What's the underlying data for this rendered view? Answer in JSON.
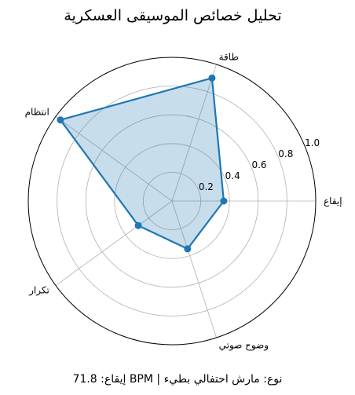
{
  "chart_data": {
    "type": "radar",
    "title": "تحليل خصائص الموسيقى العسكرية",
    "categories": [
      "إيقاع",
      "طاقة",
      "انتظام",
      "تكرار",
      "وضوح صوتي"
    ],
    "values": [
      0.36,
      0.9,
      0.96,
      0.29,
      0.35
    ],
    "rlim": [
      0,
      1.0
    ],
    "r_ticks": [
      0.2,
      0.4,
      0.6,
      0.8,
      1.0
    ],
    "r_tick_labels": [
      "0.2",
      "0.4",
      "0.6",
      "0.8",
      "1.0"
    ],
    "series_color": "#1f77b4",
    "fill_color": "#1f77b4",
    "grid": true
  },
  "footer_text": "إيقاع: 71.8 BPM | نوع: مارش احتفالي بطيء"
}
